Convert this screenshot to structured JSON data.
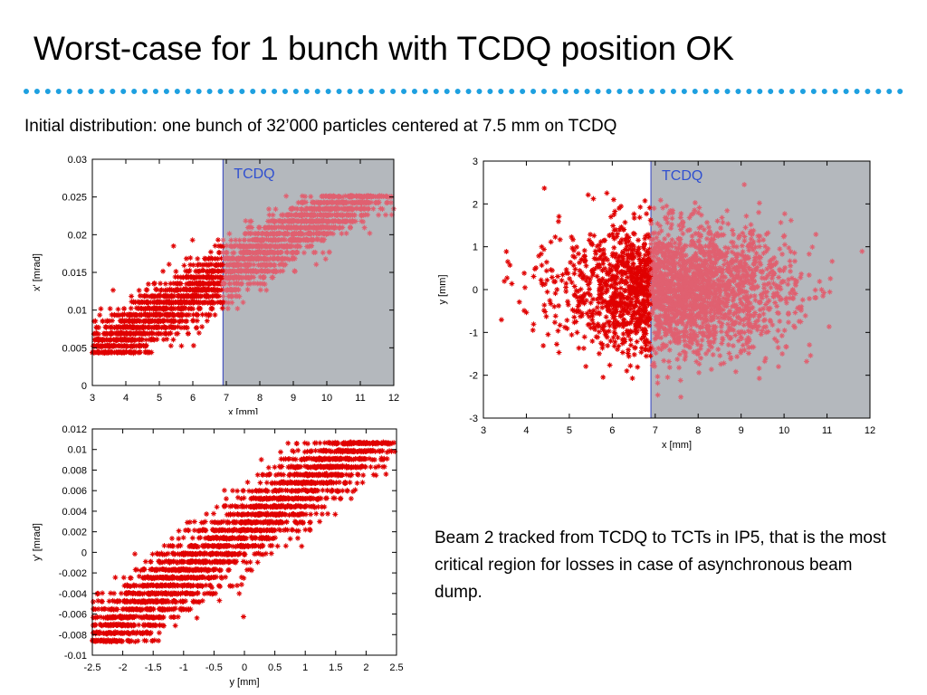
{
  "slide": {
    "title": "Worst-case for 1 bunch with TCDQ position OK",
    "subtitle": "Initial distribution: one bunch of 32’000 particles centered at 7.5 mm on TCDQ",
    "note": "Beam 2 tracked from TCDQ to TCTs in IP5, that is the most critical region for losses in case of asynchronous beam dump."
  },
  "colors": {
    "accent": "#1ea0e0",
    "marker": "#e00000",
    "marker_light": "#e06070",
    "shade": "#b4b8bd",
    "region_label": "#3050d0"
  },
  "chart_data": [
    {
      "type": "scatter",
      "xlabel": "x [mm]",
      "ylabel": "x' [mrad]",
      "xlim": [
        3,
        12
      ],
      "ylim": [
        0,
        0.03
      ],
      "xticks": [
        "3",
        "4",
        "5",
        "6",
        "7",
        "8",
        "9",
        "10",
        "11",
        "12"
      ],
      "yticks": [
        "0",
        "0.005",
        "0.01",
        "0.015",
        "0.02",
        "0.025",
        "0.03"
      ],
      "region": {
        "label": "TCDQ",
        "x_start": 6.9,
        "x_end": 12
      },
      "distribution": {
        "type": "banded",
        "x_range": [
          3.3,
          11.4
        ],
        "y_range": [
          0.004,
          0.0255
        ],
        "correlation": "positive"
      }
    },
    {
      "type": "scatter",
      "xlabel": "x [mm]",
      "ylabel": "y [mm]",
      "xlim": [
        3,
        12
      ],
      "ylim": [
        -3,
        3
      ],
      "xticks": [
        "3",
        "4",
        "5",
        "6",
        "7",
        "8",
        "9",
        "10",
        "11",
        "12"
      ],
      "yticks": [
        "-3",
        "-2",
        "-1",
        "0",
        "1",
        "2",
        "3"
      ],
      "region": {
        "label": "TCDQ",
        "x_start": 6.9,
        "x_end": 12
      },
      "distribution": {
        "type": "ellipse",
        "center": [
          7.5,
          0
        ],
        "x_range": [
          3.3,
          11.4
        ],
        "y_range": [
          -2.3,
          2.3
        ]
      }
    },
    {
      "type": "scatter",
      "xlabel": "y [mm]",
      "ylabel": "y' [mrad]",
      "xlim": [
        -2.5,
        2.5
      ],
      "ylim": [
        -0.01,
        0.012
      ],
      "xticks": [
        "-2.5",
        "-2",
        "-1.5",
        "-1",
        "-0.5",
        "0",
        "0.5",
        "1",
        "1.5",
        "2",
        "2.5"
      ],
      "yticks": [
        "-0.01",
        "-0.008",
        "-0.006",
        "-0.004",
        "-0.002",
        "0",
        "0.002",
        "0.004",
        "0.006",
        "0.008",
        "0.01",
        "0.012"
      ],
      "distribution": {
        "type": "banded",
        "x_range": [
          -2.3,
          2.2
        ],
        "y_range": [
          -0.009,
          0.011
        ],
        "correlation": "positive"
      }
    }
  ]
}
